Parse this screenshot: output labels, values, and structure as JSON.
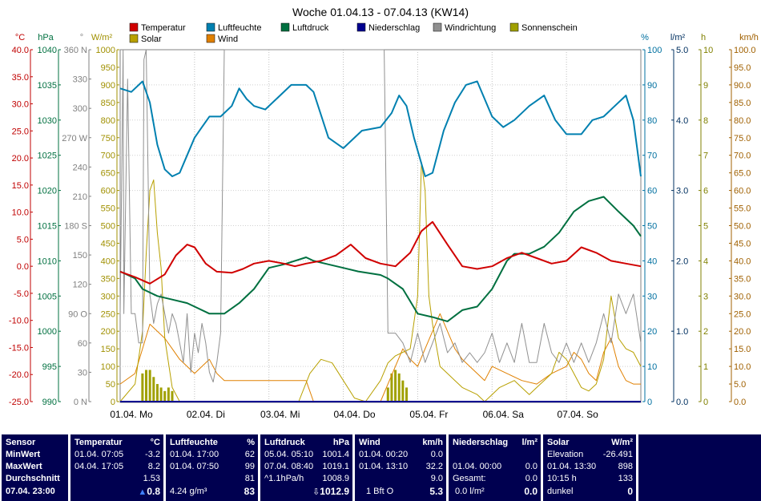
{
  "chart_data": {
    "type": "line",
    "title": "Woche 01.04.13 - 07.04.13 (KW14)",
    "x_labels": [
      "01.04. Mo",
      "02.04. Di",
      "03.04. Mi",
      "04.04. Do",
      "05.04. Fr",
      "06.04. Sa",
      "07.04. So"
    ],
    "axes": [
      {
        "unit": "°C",
        "color": "#c00000",
        "ticks": [
          "40.0",
          "35.0",
          "30.0",
          "25.0",
          "20.0",
          "15.0",
          "10.0",
          "5.0",
          "0.0",
          "-5.0",
          "-10.0",
          "-15.0",
          "-20.0",
          "-25.0"
        ],
        "ylim": [
          -25,
          40
        ]
      },
      {
        "unit": "hPa",
        "color": "#007040",
        "ticks": [
          "1040",
          "1035",
          "1030",
          "1025",
          "1020",
          "1015",
          "1010",
          "1005",
          "1000",
          "995",
          "990"
        ],
        "ylim": [
          990,
          1040
        ]
      },
      {
        "unit": "°",
        "color": "#808080",
        "ticks": [
          "360 N",
          "330",
          "300",
          "270 W",
          "240",
          "210",
          "180 S",
          "150",
          "120",
          "90 O",
          "60",
          "30",
          "0 N"
        ],
        "ylim": [
          0,
          360
        ]
      },
      {
        "unit": "W/m²",
        "color": "#a09000",
        "ticks": [
          "1000",
          "950",
          "900",
          "850",
          "800",
          "750",
          "700",
          "650",
          "600",
          "550",
          "500",
          "450",
          "400",
          "350",
          "300",
          "250",
          "200",
          "150",
          "100",
          "50",
          "0"
        ],
        "ylim": [
          0,
          1000
        ]
      },
      {
        "unit": "%",
        "color": "#0070a0",
        "ticks": [
          "100",
          "90",
          "80",
          "70",
          "60",
          "50",
          "40",
          "30",
          "20",
          "10",
          "0"
        ],
        "ylim": [
          0,
          100
        ]
      },
      {
        "unit": "l/m²",
        "color": "#003060",
        "ticks": [
          "5.0",
          "4.0",
          "3.0",
          "2.0",
          "1.0",
          "0.0"
        ],
        "ylim": [
          0,
          5
        ]
      },
      {
        "unit": "h",
        "color": "#808000",
        "ticks": [
          "10",
          "9",
          "8",
          "7",
          "6",
          "5",
          "4",
          "3",
          "2",
          "1",
          "0"
        ],
        "ylim": [
          0,
          10
        ]
      },
      {
        "unit": "km/h",
        "color": "#a06000",
        "ticks": [
          "100.0",
          "95.0",
          "90.0",
          "85.0",
          "80.0",
          "75.0",
          "70.0",
          "65.0",
          "60.0",
          "55.0",
          "50.0",
          "45.0",
          "40.0",
          "35.0",
          "30.0",
          "25.0",
          "20.0",
          "15.0",
          "10.0",
          "5.0",
          "0.0"
        ],
        "ylim": [
          0,
          100
        ]
      }
    ],
    "legend": [
      {
        "name": "Temperatur",
        "color": "#d00000"
      },
      {
        "name": "Luftfeuchte",
        "color": "#0080b0"
      },
      {
        "name": "Luftdruck",
        "color": "#007040"
      },
      {
        "name": "Niederschlag",
        "color": "#000090"
      },
      {
        "name": "Windrichtung",
        "color": "#909090"
      },
      {
        "name": "Sonnenschein",
        "color": "#a0a000"
      },
      {
        "name": "Solar",
        "color": "#b8a000"
      },
      {
        "name": "Wind",
        "color": "#e08000"
      }
    ],
    "series": [
      {
        "name": "Temperatur",
        "unit": "°C",
        "x": [
          0,
          0.2,
          0.4,
          0.6,
          0.75,
          0.9,
          1.0,
          1.15,
          1.3,
          1.5,
          1.65,
          1.8,
          2.0,
          2.2,
          2.35,
          2.5,
          2.7,
          2.9,
          3.1,
          3.3,
          3.5,
          3.7,
          3.9,
          4.05,
          4.2,
          4.4,
          4.6,
          4.8,
          5.0,
          5.2,
          5.4,
          5.6,
          5.8,
          6.0,
          6.2,
          6.4,
          6.6,
          6.8,
          7.0
        ],
        "y": [
          -1.0,
          -2.0,
          -3.2,
          -1.5,
          2.0,
          4.0,
          3.5,
          0.5,
          -1.0,
          -1.2,
          -0.5,
          0.5,
          1.0,
          0.5,
          0.0,
          0.5,
          1.0,
          2.0,
          4.0,
          1.5,
          0.5,
          0.0,
          2.5,
          6.5,
          8.2,
          4.0,
          0.0,
          -0.5,
          0.0,
          1.5,
          2.5,
          1.5,
          0.5,
          1.0,
          3.5,
          2.5,
          1.0,
          0.5,
          0.0
        ]
      },
      {
        "name": "Luftfeuchte",
        "unit": "%",
        "x": [
          0,
          0.15,
          0.3,
          0.4,
          0.5,
          0.6,
          0.7,
          0.8,
          0.9,
          1.0,
          1.1,
          1.2,
          1.35,
          1.5,
          1.6,
          1.7,
          1.8,
          1.95,
          2.1,
          2.3,
          2.5,
          2.6,
          2.8,
          3.0,
          3.1,
          3.25,
          3.5,
          3.65,
          3.75,
          3.85,
          3.95,
          4.1,
          4.2,
          4.35,
          4.5,
          4.65,
          4.8,
          5.0,
          5.15,
          5.3,
          5.5,
          5.7,
          5.85,
          6.0,
          6.2,
          6.35,
          6.5,
          6.65,
          6.8,
          6.9,
          7.0
        ],
        "y": [
          89,
          88,
          91,
          85,
          73,
          66,
          64,
          65,
          70,
          75,
          78,
          81,
          81,
          84,
          89,
          86,
          84,
          83,
          86,
          90,
          90,
          88,
          75,
          72,
          74,
          77,
          78,
          82,
          87,
          84,
          75,
          64,
          65,
          77,
          85,
          90,
          91,
          81,
          78,
          80,
          84,
          87,
          80,
          76,
          76,
          80,
          81,
          84,
          87,
          80,
          64
        ]
      },
      {
        "name": "Luftdruck",
        "unit": "hPa",
        "x": [
          0,
          0.2,
          0.3,
          0.5,
          0.7,
          0.9,
          1.0,
          1.2,
          1.4,
          1.6,
          1.8,
          2.0,
          2.2,
          2.5,
          2.6,
          2.8,
          3.0,
          3.2,
          3.5,
          3.6,
          3.8,
          4.0,
          4.2,
          4.4,
          4.6,
          4.8,
          5.0,
          5.2,
          5.3,
          5.5,
          5.7,
          5.9,
          6.1,
          6.3,
          6.5,
          6.7,
          6.9,
          7.0
        ],
        "y": [
          1008.5,
          1007.5,
          1006,
          1005,
          1004.5,
          1004,
          1003.5,
          1002.5,
          1002.5,
          1004,
          1006,
          1009,
          1009.5,
          1010.5,
          1010,
          1009.5,
          1009,
          1008.5,
          1008,
          1007.5,
          1006,
          1002.5,
          1002,
          1001.4,
          1003,
          1003.5,
          1006,
          1010,
          1011,
          1011,
          1012,
          1014,
          1017,
          1018.5,
          1019.1,
          1017,
          1015,
          1013.5
        ]
      },
      {
        "name": "Windrichtung",
        "unit": "°",
        "x": [
          0,
          0.04,
          0.05,
          0.1,
          0.15,
          0.2,
          0.25,
          0.3,
          0.32,
          0.35,
          0.4,
          0.45,
          0.5,
          0.55,
          0.6,
          0.65,
          0.7,
          0.75,
          0.8,
          0.85,
          0.9,
          0.95,
          1.0,
          1.05,
          1.1,
          1.15,
          1.2,
          1.25,
          1.3,
          1.35,
          1.4,
          1.45,
          1.5,
          1.6,
          2.0,
          2.5,
          3.0,
          3.5,
          3.55,
          3.6,
          3.7,
          3.8,
          3.9,
          4.0,
          4.1,
          4.2,
          4.3,
          4.4,
          4.5,
          4.6,
          4.7,
          4.8,
          4.9,
          5.0,
          5.1,
          5.2,
          5.3,
          5.4,
          5.5,
          5.6,
          5.7,
          5.8,
          5.9,
          6.0,
          6.1,
          6.2,
          6.3,
          6.4,
          6.5,
          6.6,
          6.7,
          6.8,
          6.9,
          7.0
        ],
        "y": [
          90,
          360,
          90,
          330,
          90,
          90,
          60,
          60,
          350,
          360,
          110,
          80,
          100,
          110,
          90,
          70,
          90,
          80,
          60,
          40,
          90,
          30,
          70,
          50,
          80,
          60,
          30,
          20,
          40,
          70,
          360,
          360,
          360,
          360,
          360,
          360,
          360,
          360,
          360,
          70,
          70,
          60,
          40,
          70,
          40,
          60,
          80,
          50,
          60,
          40,
          50,
          40,
          50,
          70,
          40,
          60,
          40,
          80,
          40,
          40,
          80,
          50,
          40,
          60,
          40,
          60,
          40,
          60,
          90,
          60,
          110,
          90,
          110,
          60
        ]
      },
      {
        "name": "Solar",
        "unit": "W/m²",
        "x": [
          0,
          0.2,
          0.3,
          0.35,
          0.4,
          0.45,
          0.5,
          0.55,
          0.6,
          0.7,
          0.8,
          0.9,
          1.5,
          2.0,
          2.4,
          2.55,
          2.7,
          2.85,
          3.0,
          3.15,
          3.3,
          3.5,
          3.6,
          3.7,
          3.8,
          3.9,
          4.0,
          4.05,
          4.1,
          4.15,
          4.2,
          4.25,
          4.3,
          4.4,
          4.5,
          4.6,
          4.7,
          4.8,
          4.9,
          5.0,
          5.1,
          5.3,
          5.5,
          5.6,
          5.7,
          5.8,
          5.9,
          6.0,
          6.1,
          6.2,
          6.3,
          6.4,
          6.5,
          6.6,
          6.7,
          6.8,
          6.9,
          7.0
        ],
        "y": [
          0,
          50,
          200,
          420,
          600,
          630,
          480,
          380,
          180,
          40,
          0,
          0,
          0,
          0,
          0,
          80,
          120,
          110,
          60,
          10,
          0,
          60,
          110,
          130,
          140,
          150,
          300,
          680,
          600,
          300,
          220,
          160,
          100,
          80,
          60,
          40,
          30,
          20,
          0,
          20,
          40,
          60,
          20,
          40,
          60,
          80,
          140,
          120,
          80,
          40,
          30,
          50,
          120,
          300,
          180,
          150,
          140,
          100
        ]
      },
      {
        "name": "Wind",
        "unit": "km/h",
        "x": [
          0,
          0.2,
          0.3,
          0.4,
          0.5,
          0.6,
          0.7,
          0.8,
          0.9,
          1.0,
          1.1,
          1.2,
          1.3,
          1.4,
          2.0,
          2.5,
          2.6,
          3.0,
          3.5,
          3.6,
          3.7,
          3.8,
          3.9,
          4.0,
          4.1,
          4.2,
          4.3,
          4.4,
          4.5,
          4.6,
          4.7,
          4.8,
          4.9,
          5.0,
          5.2,
          5.4,
          5.6,
          5.8,
          6.0,
          6.1,
          6.2,
          6.3,
          6.4,
          6.5,
          6.6,
          6.7,
          6.8,
          6.9,
          7.0
        ],
        "y": [
          5,
          8,
          15,
          22,
          20,
          18,
          15,
          12,
          10,
          8,
          10,
          12,
          8,
          6,
          6,
          6,
          0,
          0,
          0,
          5,
          10,
          15,
          12,
          10,
          15,
          20,
          25,
          20,
          15,
          12,
          10,
          8,
          6,
          10,
          8,
          6,
          5,
          8,
          10,
          14,
          12,
          8,
          6,
          14,
          18,
          10,
          6,
          5,
          5
        ]
      },
      {
        "name": "Sonnenschein",
        "unit": "h",
        "x": [
          0.3,
          0.35,
          0.4,
          0.45,
          0.5,
          0.55,
          0.6,
          0.65,
          0.7,
          3.6,
          3.65,
          3.7,
          3.75,
          3.8,
          3.85
        ],
        "y": [
          0.8,
          0.9,
          0.9,
          0.7,
          0.5,
          0.4,
          0.3,
          0.4,
          0.3,
          0.4,
          0.8,
          0.9,
          0.8,
          0.6,
          0.4
        ]
      }
    ]
  },
  "footer": {
    "sensor": {
      "header": "Sensor",
      "rows": [
        "MinWert",
        "MaxWert",
        "Durchschnitt"
      ],
      "date": "07.04.  23:00"
    },
    "temp": {
      "header": "Temperatur",
      "unit": "°C",
      "min_t": "01.04.  07:05",
      "min_v": "-3.2",
      "max_t": "04.04.  17:05",
      "max_v": "8.2",
      "avg": "1.53",
      "cur": "0.8"
    },
    "hum": {
      "header": "Luftfeuchte",
      "unit": "%",
      "min_t": "01.04.  17:00",
      "min_v": "62",
      "max_t": "01.04.  07:50",
      "max_v": "99",
      "avg": "81",
      "abs": "4.24 g/m³",
      "cur": "83"
    },
    "press": {
      "header": "Luftdruck",
      "unit": "hPa",
      "min_t": "05.04.  05:10",
      "min_v": "1001.4",
      "max_t": "07.04.  08:40",
      "max_v": "1019.1",
      "trend": "^1.1hPa/h",
      "avg": "1008.9",
      "cur": "1012.9"
    },
    "wind": {
      "header": "Wind",
      "unit": "km/h",
      "min_t": "01.04.  00:20",
      "min_v": "0.0",
      "max_t": "01.04.  13:10",
      "max_v": "32.2",
      "avg": "9.0",
      "bft": "1 Bft O",
      "cur": "5.3"
    },
    "rain": {
      "header": "Niederschlag",
      "unit": "l/m²",
      "max_t": "01.04.  00:00",
      "max_v": "0.0",
      "total_label": "Gesamt:",
      "total_v": "0.0",
      "cur_rate": "0.0 l/m²",
      "cur": "0.0"
    },
    "solar": {
      "header": "Solar",
      "unit": "W/m²",
      "elev_label": "Elevation",
      "elev_v": "-26.491",
      "max_t": "01.04.  13:30",
      "max_v": "898",
      "sun_h": "10:15 h",
      "sun_v": "133",
      "state": "dunkel",
      "cur": "0"
    }
  }
}
